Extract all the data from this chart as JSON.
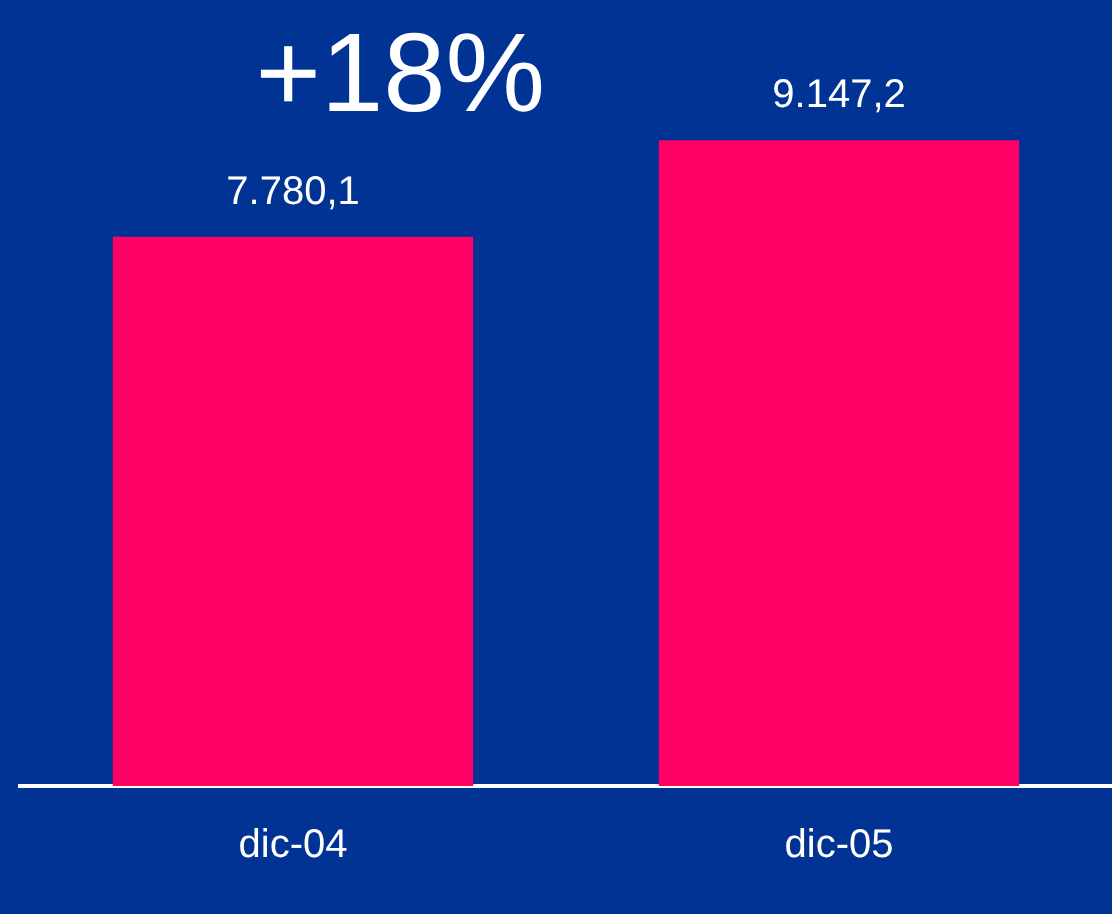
{
  "chart_data": {
    "type": "bar",
    "categories": [
      "dic-04",
      "dic-05"
    ],
    "values": [
      7780.1,
      9147.2
    ],
    "color": "#ff0066",
    "value_labels": [
      "7.780,1",
      "9.147,2"
    ],
    "annotations": [
      "+18%"
    ],
    "grid": false,
    "legend": false
  }
}
